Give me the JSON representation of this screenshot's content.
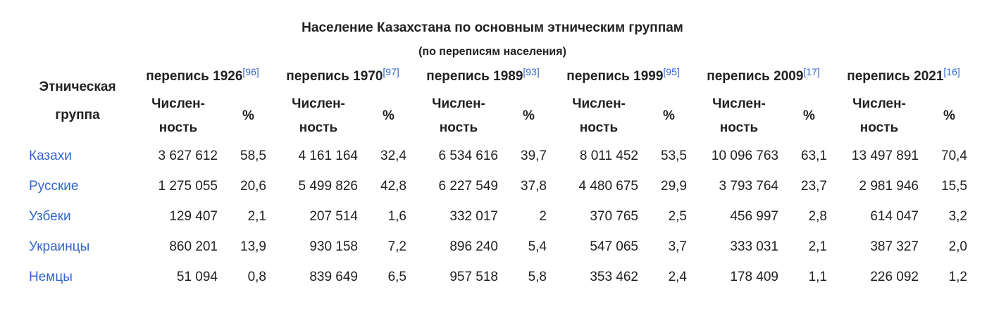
{
  "table": {
    "title": "Население Казахстана по основным этническим группам",
    "subtitle": "(по переписям населения)",
    "group_header": "Этническая группа",
    "censuses": [
      {
        "label": "перепись 1926",
        "ref": "[96]"
      },
      {
        "label": "перепись 1970",
        "ref": "[97]"
      },
      {
        "label": "перепись 1989",
        "ref": "[93]"
      },
      {
        "label": "перепись 1999",
        "ref": "[95]"
      },
      {
        "label": "перепись 2009",
        "ref": "[17]"
      },
      {
        "label": "перепись 2021",
        "ref": "[16]"
      }
    ],
    "num_header": "Числен-ность",
    "pct_header": "%",
    "rows": [
      {
        "name": "Казахи",
        "values": [
          "3 627 612",
          "58,5",
          "4 161 164",
          "32,4",
          "6 534 616",
          "39,7",
          "8 011 452",
          "53,5",
          "10 096 763",
          "63,1",
          "13 497 891",
          "70,4"
        ]
      },
      {
        "name": "Русские",
        "values": [
          "1 275 055",
          "20,6",
          "5 499 826",
          "42,8",
          "6 227 549",
          "37,8",
          "4 480 675",
          "29,9",
          "3 793 764",
          "23,7",
          "2 981 946",
          "15,5"
        ]
      },
      {
        "name": "Узбеки",
        "values": [
          "129 407",
          "2,1",
          "207 514",
          "1,6",
          "332 017",
          "2",
          "370 765",
          "2,5",
          "456 997",
          "2,8",
          "614 047",
          "3,2"
        ]
      },
      {
        "name": "Украинцы",
        "values": [
          "860 201",
          "13,9",
          "930 158",
          "7,2",
          "896 240",
          "5,4",
          "547 065",
          "3,7",
          "333 031",
          "2,1",
          "387 327",
          "2,0"
        ]
      },
      {
        "name": "Немцы",
        "values": [
          "51 094",
          "0,8",
          "839 649",
          "6,5",
          "957 518",
          "5,8",
          "353 462",
          "2,4",
          "178 409",
          "1,1",
          "226 092",
          "1,2"
        ]
      }
    ]
  },
  "colors": {
    "link": "#3366cc",
    "text": "#202122",
    "background": "#ffffff"
  }
}
